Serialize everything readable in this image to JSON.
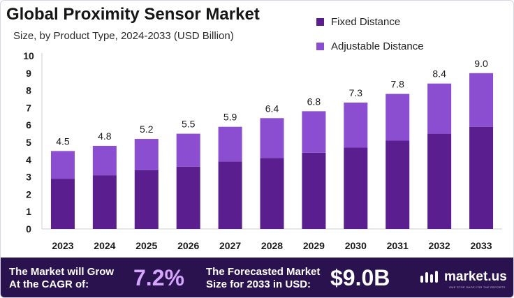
{
  "colors": {
    "fixed": "#5a1e8e",
    "adjustable": "#8b4ed1",
    "footer_bg": "#29124d",
    "cagr_accent": "#d6a6ff"
  },
  "chart_data": {
    "type": "bar",
    "stacked": true,
    "title": "Global Proximity Sensor Market",
    "subtitle": "Size, by Product Type, 2024-2033 (USD Billion)",
    "categories": [
      "2023",
      "2024",
      "2025",
      "2026",
      "2027",
      "2028",
      "2029",
      "2030",
      "2031",
      "2032",
      "2033"
    ],
    "series": [
      {
        "name": "Fixed Distance",
        "values": [
          2.9,
          3.1,
          3.4,
          3.6,
          3.9,
          4.1,
          4.4,
          4.7,
          5.1,
          5.5,
          5.9
        ]
      },
      {
        "name": "Adjustable Distance",
        "values": [
          1.6,
          1.7,
          1.8,
          1.9,
          2.0,
          2.3,
          2.4,
          2.6,
          2.7,
          2.9,
          3.1
        ]
      }
    ],
    "totals": [
      "4.5",
      "4.8",
      "5.2",
      "5.5",
      "5.9",
      "6.4",
      "6.8",
      "7.3",
      "7.8",
      "8.4",
      "9.0"
    ],
    "yticks": [
      "0",
      "1",
      "2",
      "3",
      "4",
      "5",
      "6",
      "7",
      "8",
      "9",
      "10"
    ],
    "ylim": [
      0,
      10
    ],
    "xlabel": "",
    "ylabel": "",
    "grid": false,
    "legend_position": "top-right"
  },
  "footer": {
    "cagr_label_line1": "The Market will Grow",
    "cagr_label_line2": "At the CAGR of:",
    "cagr_value": "7.2%",
    "forecast_label_line1": "The Forecasted Market",
    "forecast_label_line2": "Size for 2033 in USD:",
    "forecast_value": "$9.0B",
    "brand_name": "market.us",
    "brand_tagline": "ONE STOP SHOP FOR THE REPORTS"
  }
}
